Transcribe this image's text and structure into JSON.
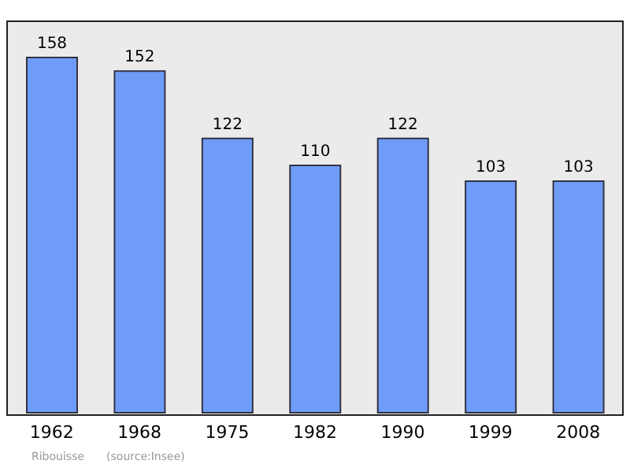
{
  "chart_data": {
    "type": "bar",
    "categories": [
      "1962",
      "1968",
      "1975",
      "1982",
      "1990",
      "1999",
      "2008"
    ],
    "values": [
      158,
      152,
      122,
      110,
      122,
      103,
      103
    ],
    "color": "#6f9cf7",
    "data_labels": true,
    "grid": false,
    "annotations": [
      "Ribouisse",
      "(source:Insee)"
    ]
  }
}
